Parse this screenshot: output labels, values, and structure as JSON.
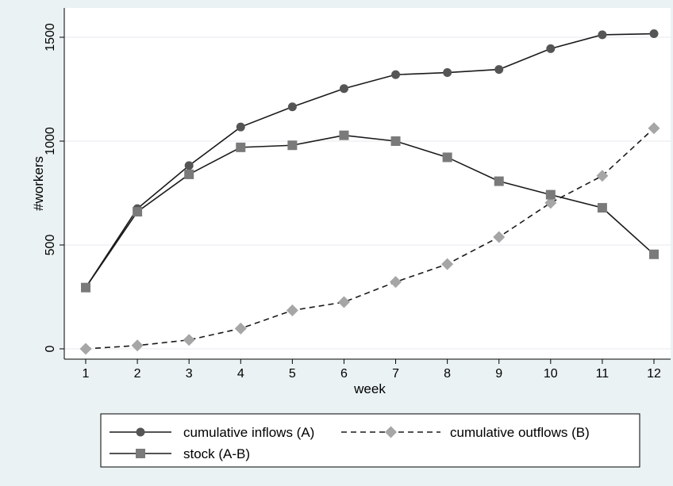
{
  "chart_data": {
    "type": "line",
    "xlabel": "week",
    "ylabel": "#workers",
    "x": [
      1,
      2,
      3,
      4,
      5,
      6,
      7,
      8,
      9,
      10,
      11,
      12
    ],
    "xlim": [
      1,
      12
    ],
    "ylim": [
      0,
      1500
    ],
    "yticks": [
      0,
      500,
      1000,
      1500
    ],
    "grid": true,
    "legend": "bottom",
    "series": [
      {
        "name": "cumulative inflows (A)",
        "marker": "circle",
        "line": "solid",
        "color": "#555555",
        "values": [
          295,
          675,
          882,
          1068,
          1165,
          1253,
          1320,
          1330,
          1345,
          1445,
          1512,
          1517
        ]
      },
      {
        "name": "cumulative outflows (B)",
        "marker": "diamond",
        "line": "dashed",
        "color": "#a6a6a6",
        "values": [
          0,
          16,
          43,
          98,
          185,
          225,
          322,
          408,
          538,
          703,
          833,
          1062
        ]
      },
      {
        "name": "stock (A-B)",
        "marker": "square",
        "line": "solid",
        "color": "#7a7a7a",
        "values": [
          295,
          660,
          840,
          970,
          980,
          1028,
          1000,
          922,
          807,
          742,
          679,
          455
        ]
      }
    ]
  }
}
